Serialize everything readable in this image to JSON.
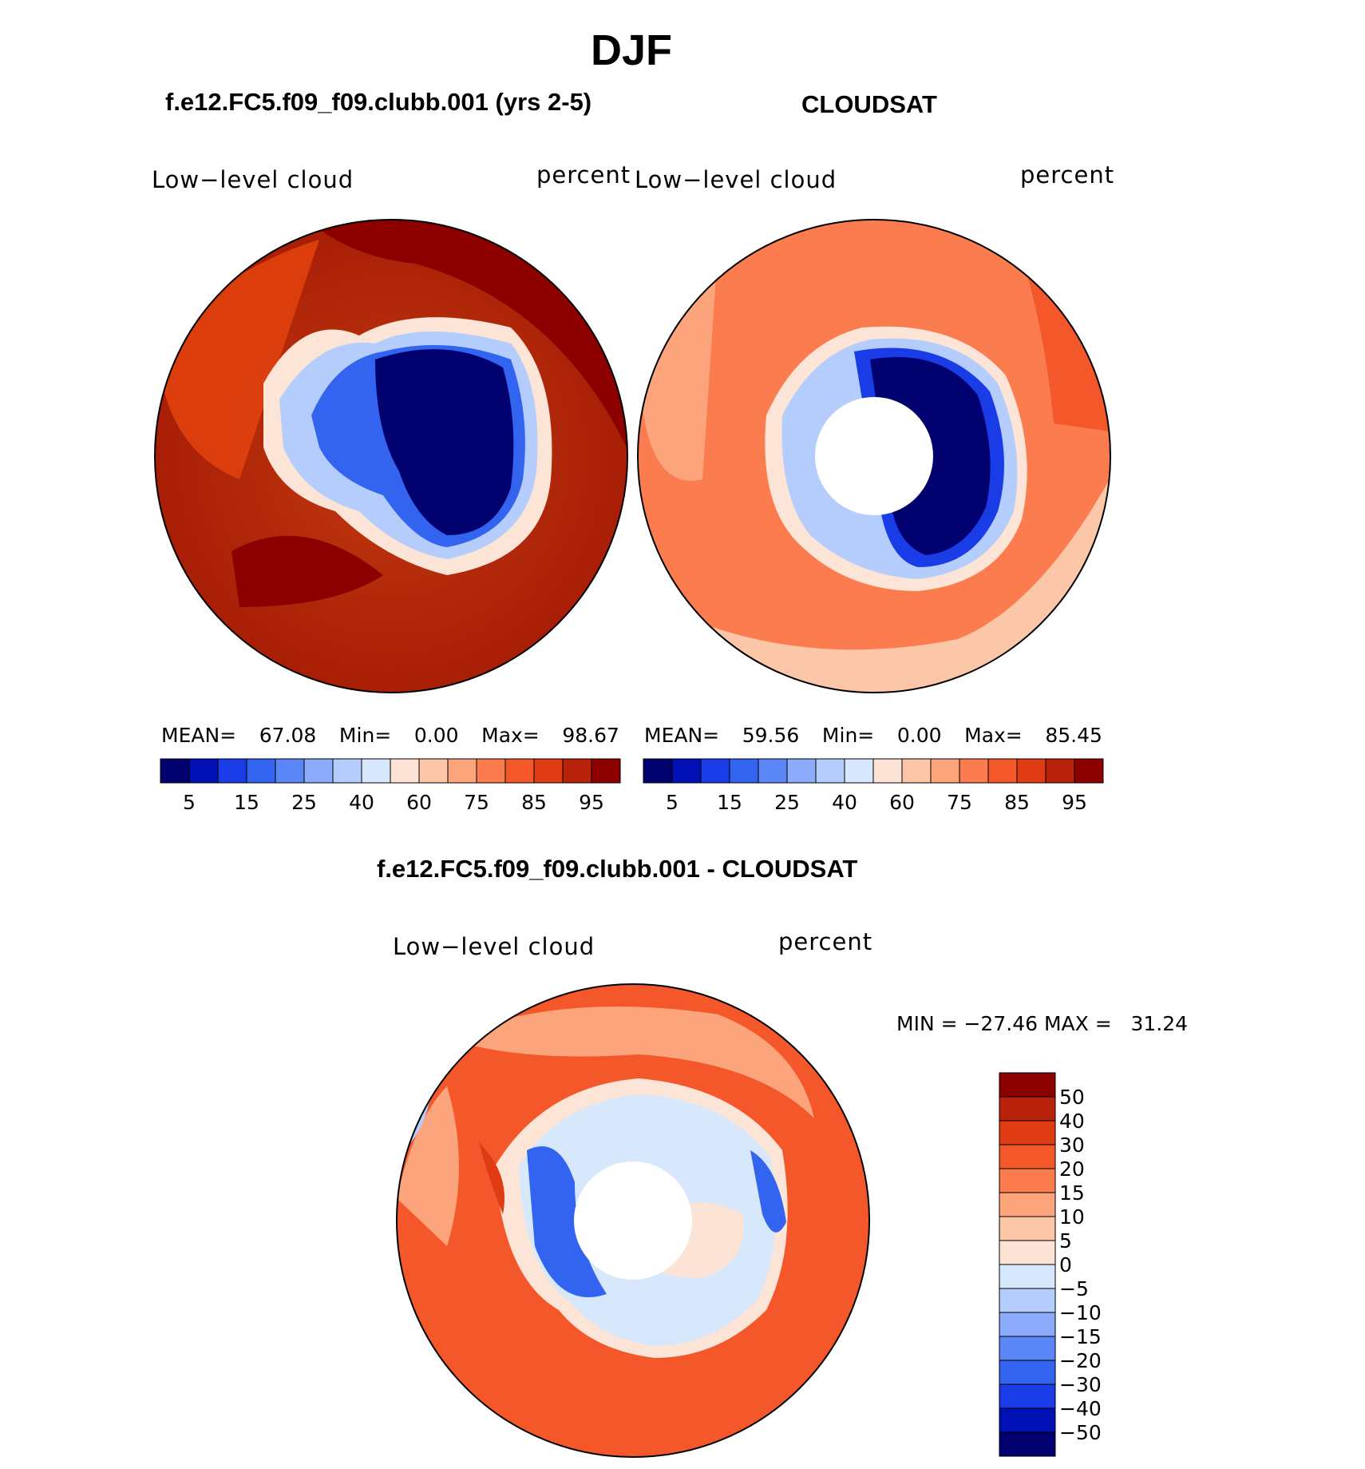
{
  "title": "DJF",
  "panels": [
    {
      "heading": "f.e12.FC5.f09_f09.clubb.001 (yrs 2-5)",
      "variable": "Low−level cloud",
      "units": "percent",
      "stats": {
        "mean_label": "MEAN=",
        "mean": "67.08",
        "min_label": "Min=",
        "min": "0.00",
        "max_label": "Max=",
        "max": "98.67"
      }
    },
    {
      "heading": "CLOUDSAT",
      "variable": "Low−level cloud",
      "units": "percent",
      "stats": {
        "mean_label": "MEAN=",
        "mean": "59.56",
        "min_label": "Min=",
        "min": "0.00",
        "max_label": "Max=",
        "max": "85.45"
      }
    },
    {
      "heading": "f.e12.FC5.f09_f09.clubb.001 - CLOUDSAT",
      "variable": "Low−level cloud",
      "units": "percent",
      "minmax": "MIN = −27.46 MAX =   31.24"
    }
  ],
  "colorbar_top": {
    "colors": [
      "#00006e",
      "#0010b4",
      "#1a3ce6",
      "#3264f0",
      "#5a87f5",
      "#8cabfa",
      "#b4cdfc",
      "#d7e8fd",
      "#fde3d6",
      "#fcc6a8",
      "#fca47c",
      "#fb7c4e",
      "#f4582a",
      "#e03c14",
      "#b8220a",
      "#8c0000"
    ],
    "tick_labels": [
      "5",
      "15",
      "25",
      "40",
      "60",
      "75",
      "85",
      "95"
    ]
  },
  "colorbar_diff": {
    "colors": [
      "#00006e",
      "#0010b4",
      "#1a3ce6",
      "#3264f0",
      "#5a87f5",
      "#8cabfa",
      "#b4cdfc",
      "#d7e8fd",
      "#fde3d6",
      "#fcc6a8",
      "#fca47c",
      "#fb7c4e",
      "#f4582a",
      "#e03c14",
      "#b8220a",
      "#8c0000"
    ],
    "tick_labels": [
      "−50",
      "−40",
      "−30",
      "−20",
      "−15",
      "−10",
      "−5",
      "0",
      "5",
      "10",
      "15",
      "20",
      "30",
      "40",
      "50"
    ]
  }
}
